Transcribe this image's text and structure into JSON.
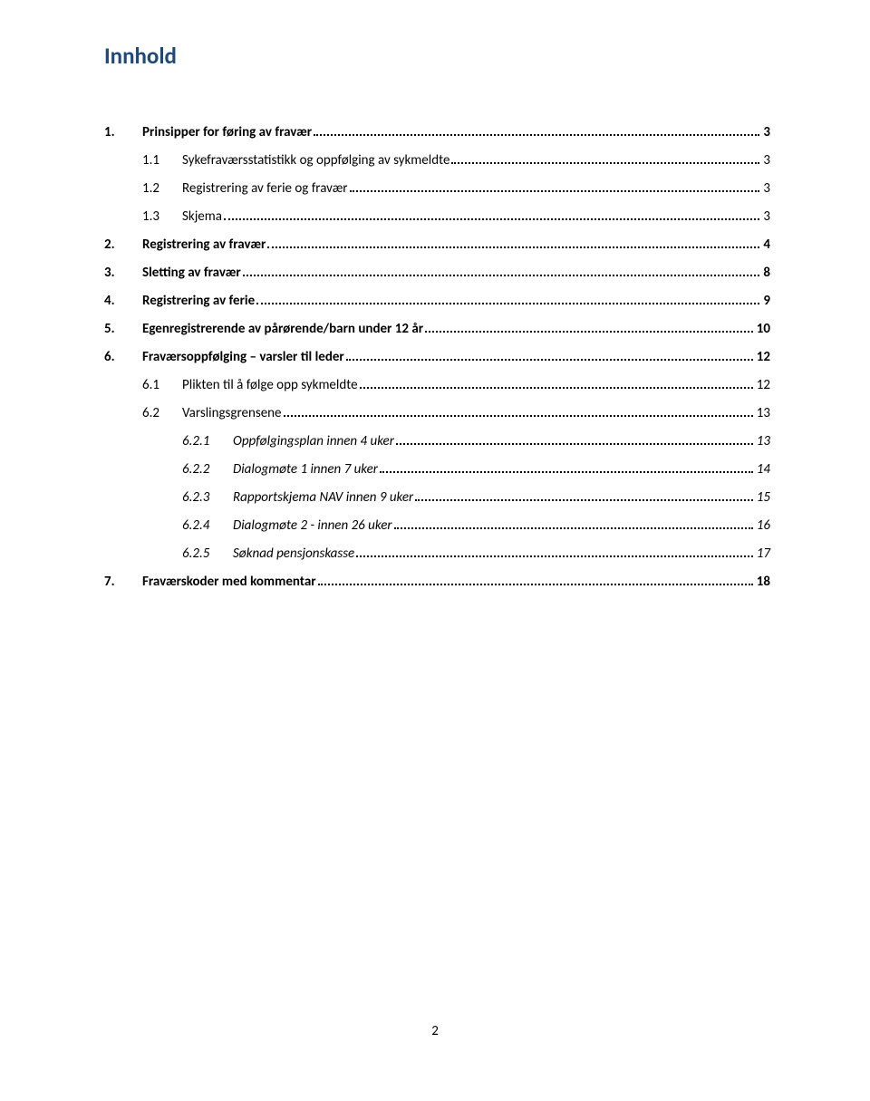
{
  "title": "Innhold",
  "page_number": "2",
  "colors": {
    "title": "#1f497d",
    "text": "#000000",
    "background": "#ffffff"
  },
  "toc": [
    {
      "level": 1,
      "num": "1.",
      "label": "Prinsipper for føring av fravær",
      "page": "3"
    },
    {
      "level": 2,
      "num": "1.1",
      "label": "Sykefraværsstatistikk og oppfølging av sykmeldte",
      "page": "3"
    },
    {
      "level": 2,
      "num": "1.2",
      "label": "Registrering av ferie og fravær",
      "page": "3"
    },
    {
      "level": 2,
      "num": "1.3",
      "label": "Skjema",
      "page": "3"
    },
    {
      "level": 1,
      "num": "2.",
      "label": "Registrering av fravær",
      "page": "4"
    },
    {
      "level": 1,
      "num": "3.",
      "label": "Sletting av fravær",
      "page": "8"
    },
    {
      "level": 1,
      "num": "4.",
      "label": "Registrering av ferie",
      "page": "9"
    },
    {
      "level": 1,
      "num": "5.",
      "label": "Egenregistrerende av pårørende/barn under 12 år",
      "page": "10"
    },
    {
      "level": 1,
      "num": "6.",
      "label": "Fraværsoppfølging – varsler til leder",
      "page": "12"
    },
    {
      "level": 2,
      "num": "6.1",
      "label": "Plikten til å følge opp sykmeldte",
      "page": "12"
    },
    {
      "level": 2,
      "num": "6.2",
      "label": "Varslingsgrensene",
      "page": "13"
    },
    {
      "level": 3,
      "num": "6.2.1",
      "label": "Oppfølgingsplan innen 4 uker",
      "page": "13"
    },
    {
      "level": 3,
      "num": "6.2.2",
      "label": "Dialogmøte 1 innen 7 uker",
      "page": "14"
    },
    {
      "level": 3,
      "num": "6.2.3",
      "label": "Rapportskjema NAV innen 9 uker",
      "page": "15"
    },
    {
      "level": 3,
      "num": "6.2.4",
      "label": "Dialogmøte 2 - innen 26 uker",
      "page": "16"
    },
    {
      "level": 3,
      "num": "6.2.5",
      "label": "Søknad pensjonskasse",
      "page": "17"
    },
    {
      "level": 1,
      "num": "7.",
      "label": "Fraværskoder med kommentar",
      "page": "18"
    }
  ]
}
